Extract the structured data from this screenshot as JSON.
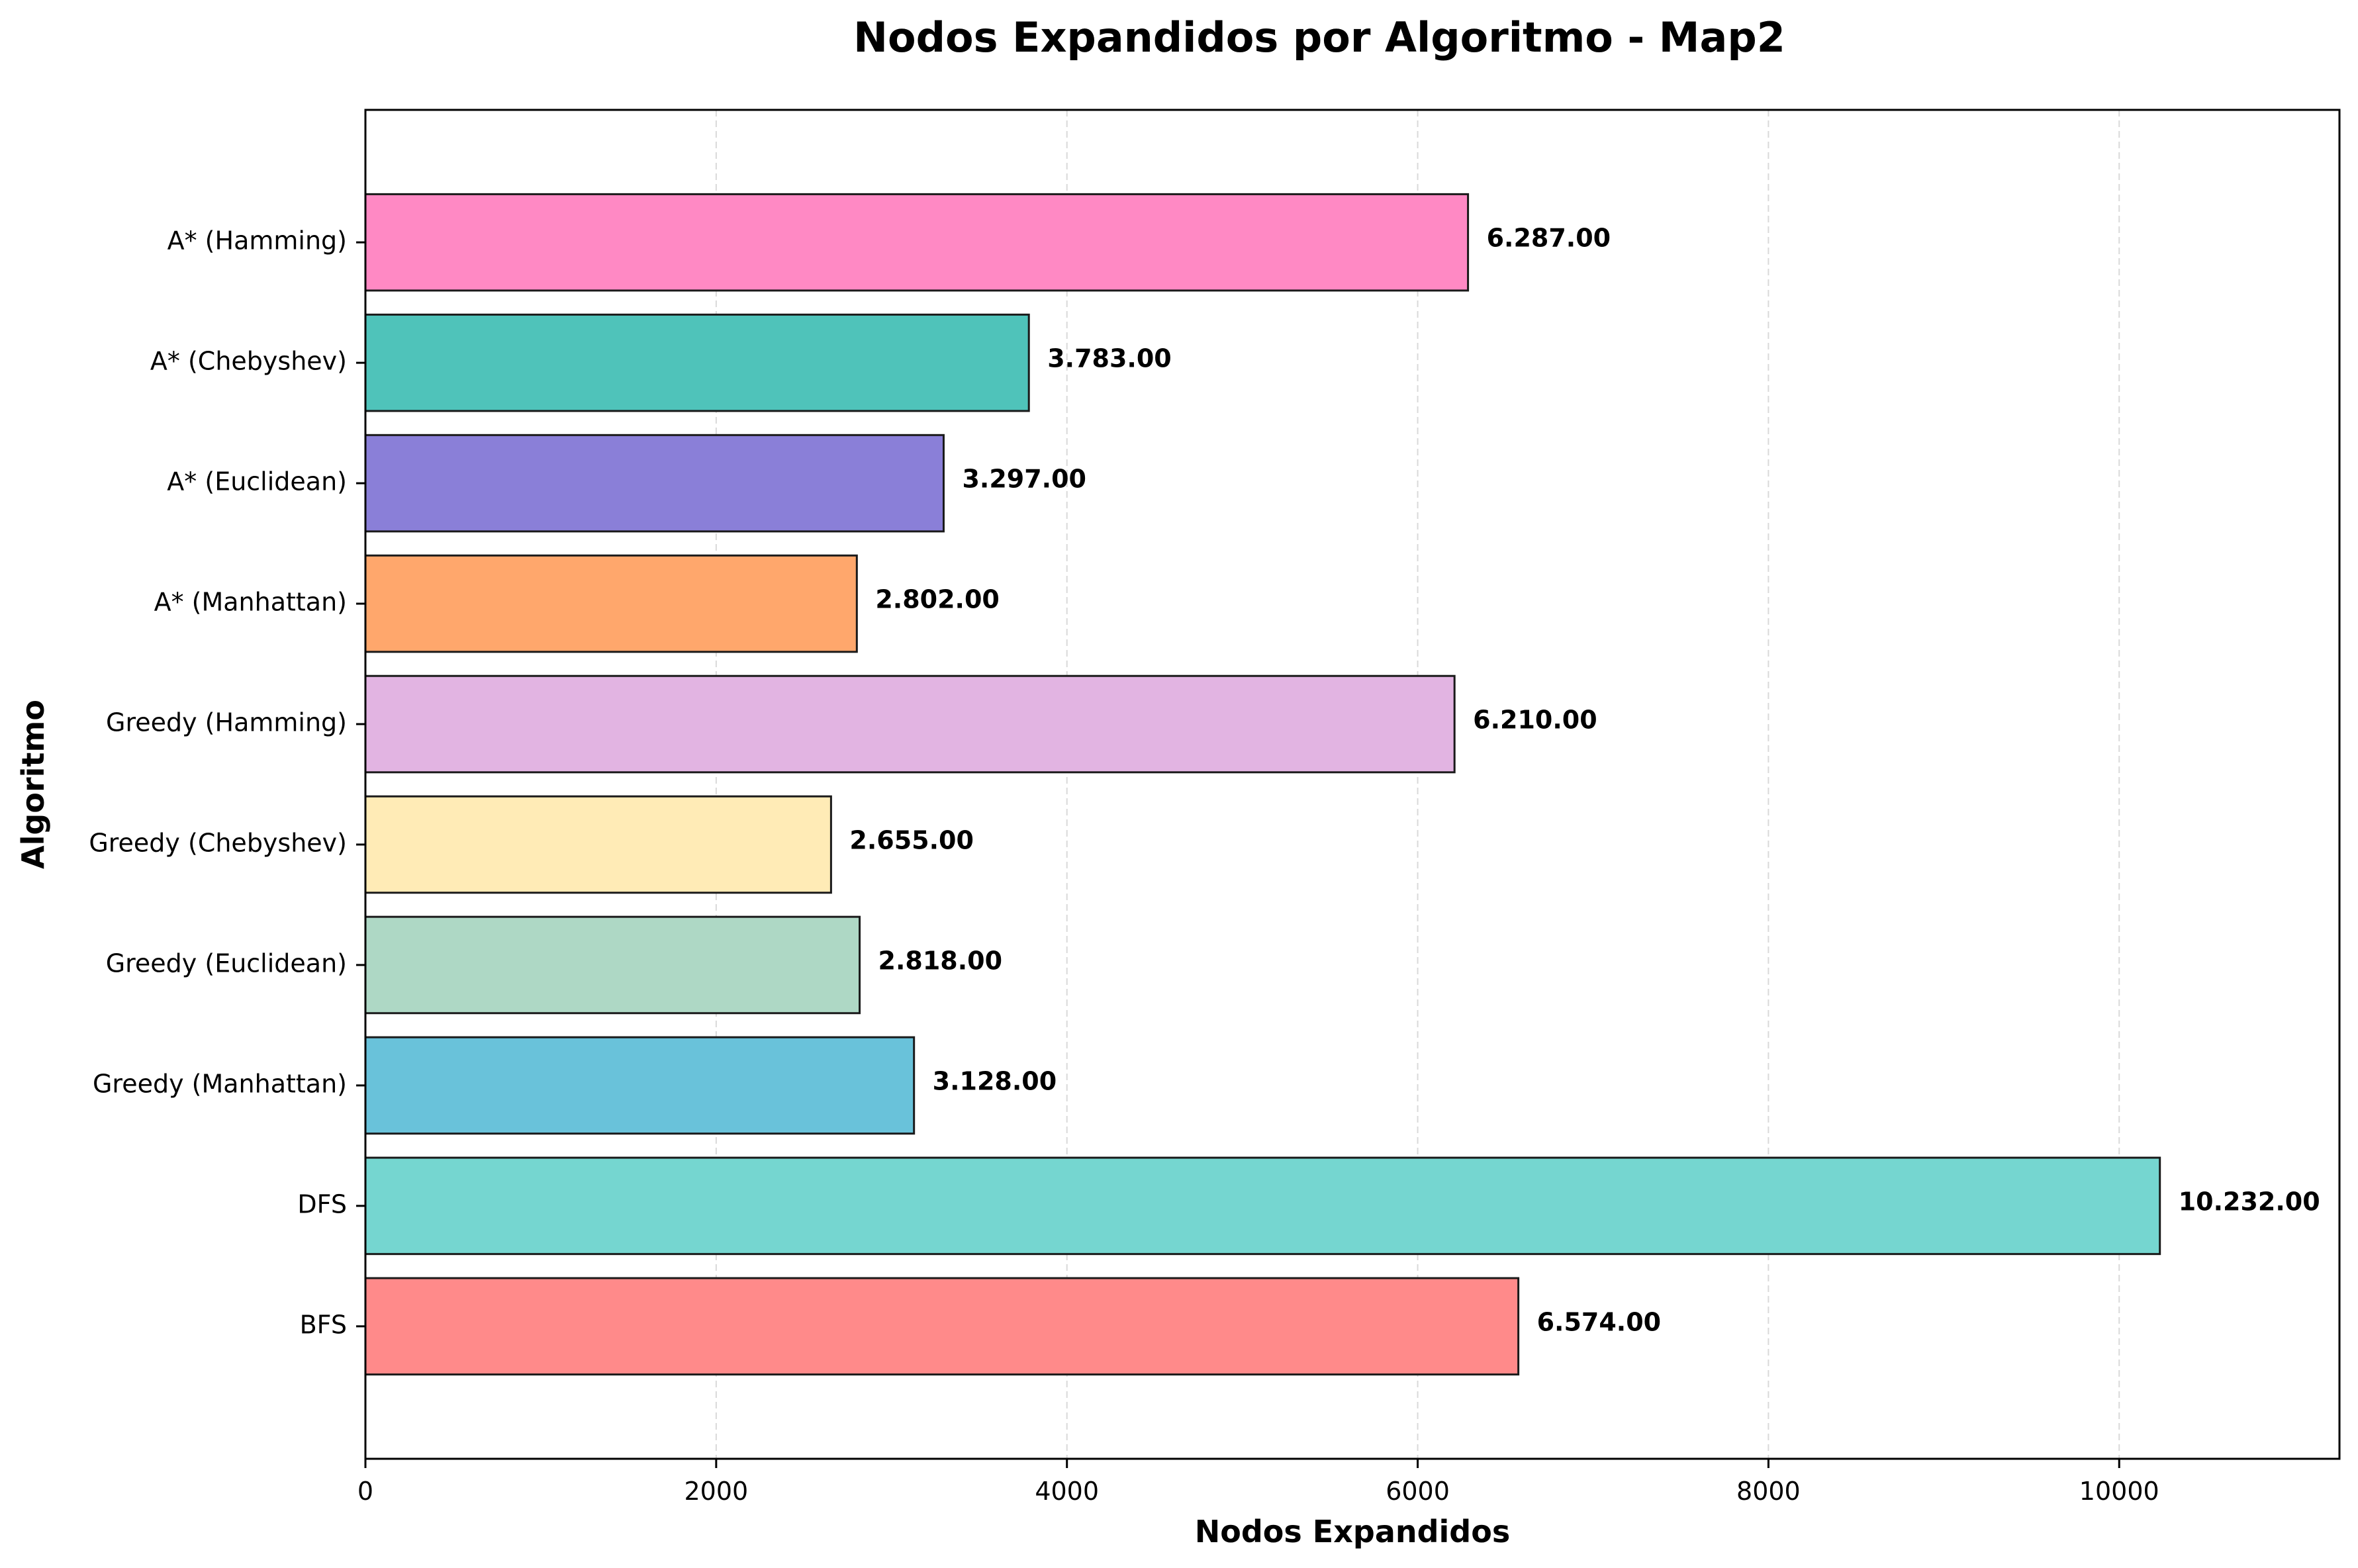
{
  "chart_data": {
    "type": "bar",
    "orientation": "horizontal",
    "title": "Nodos Expandidos por Algoritmo - Map2",
    "xlabel": "Nodos Expandidos",
    "ylabel": "Algoritmo",
    "xlim": [
      0,
      11256
    ],
    "x_ticks": [
      0,
      2000,
      4000,
      6000,
      8000,
      10000
    ],
    "x_tick_labels": [
      "0",
      "2000",
      "4000",
      "6000",
      "8000",
      "10000"
    ],
    "grid": "x-dashed",
    "categories": [
      "BFS",
      "DFS",
      "Greedy (Manhattan)",
      "Greedy (Euclidean)",
      "Greedy (Chebyshev)",
      "Greedy (Hamming)",
      "A* (Manhattan)",
      "A* (Euclidean)",
      "A* (Chebyshev)",
      "A* (Hamming)"
    ],
    "values": [
      6574,
      10232,
      3128,
      2818,
      2655,
      6210,
      2802,
      3297,
      3783,
      6287
    ],
    "value_labels": [
      "6.574.00",
      "10.232.00",
      "3.128.00",
      "2.818.00",
      "2.655.00",
      "6.210.00",
      "2.802.00",
      "3.297.00",
      "3.783.00",
      "6.287.00"
    ],
    "colors": [
      "#FF8A8A",
      "#75D6D0",
      "#69C2DA",
      "#AED8C5",
      "#FFEBB6",
      "#E2B4E2",
      "#FFA76C",
      "#8A7FD8",
      "#4FC3BA",
      "#FF89C4"
    ]
  }
}
